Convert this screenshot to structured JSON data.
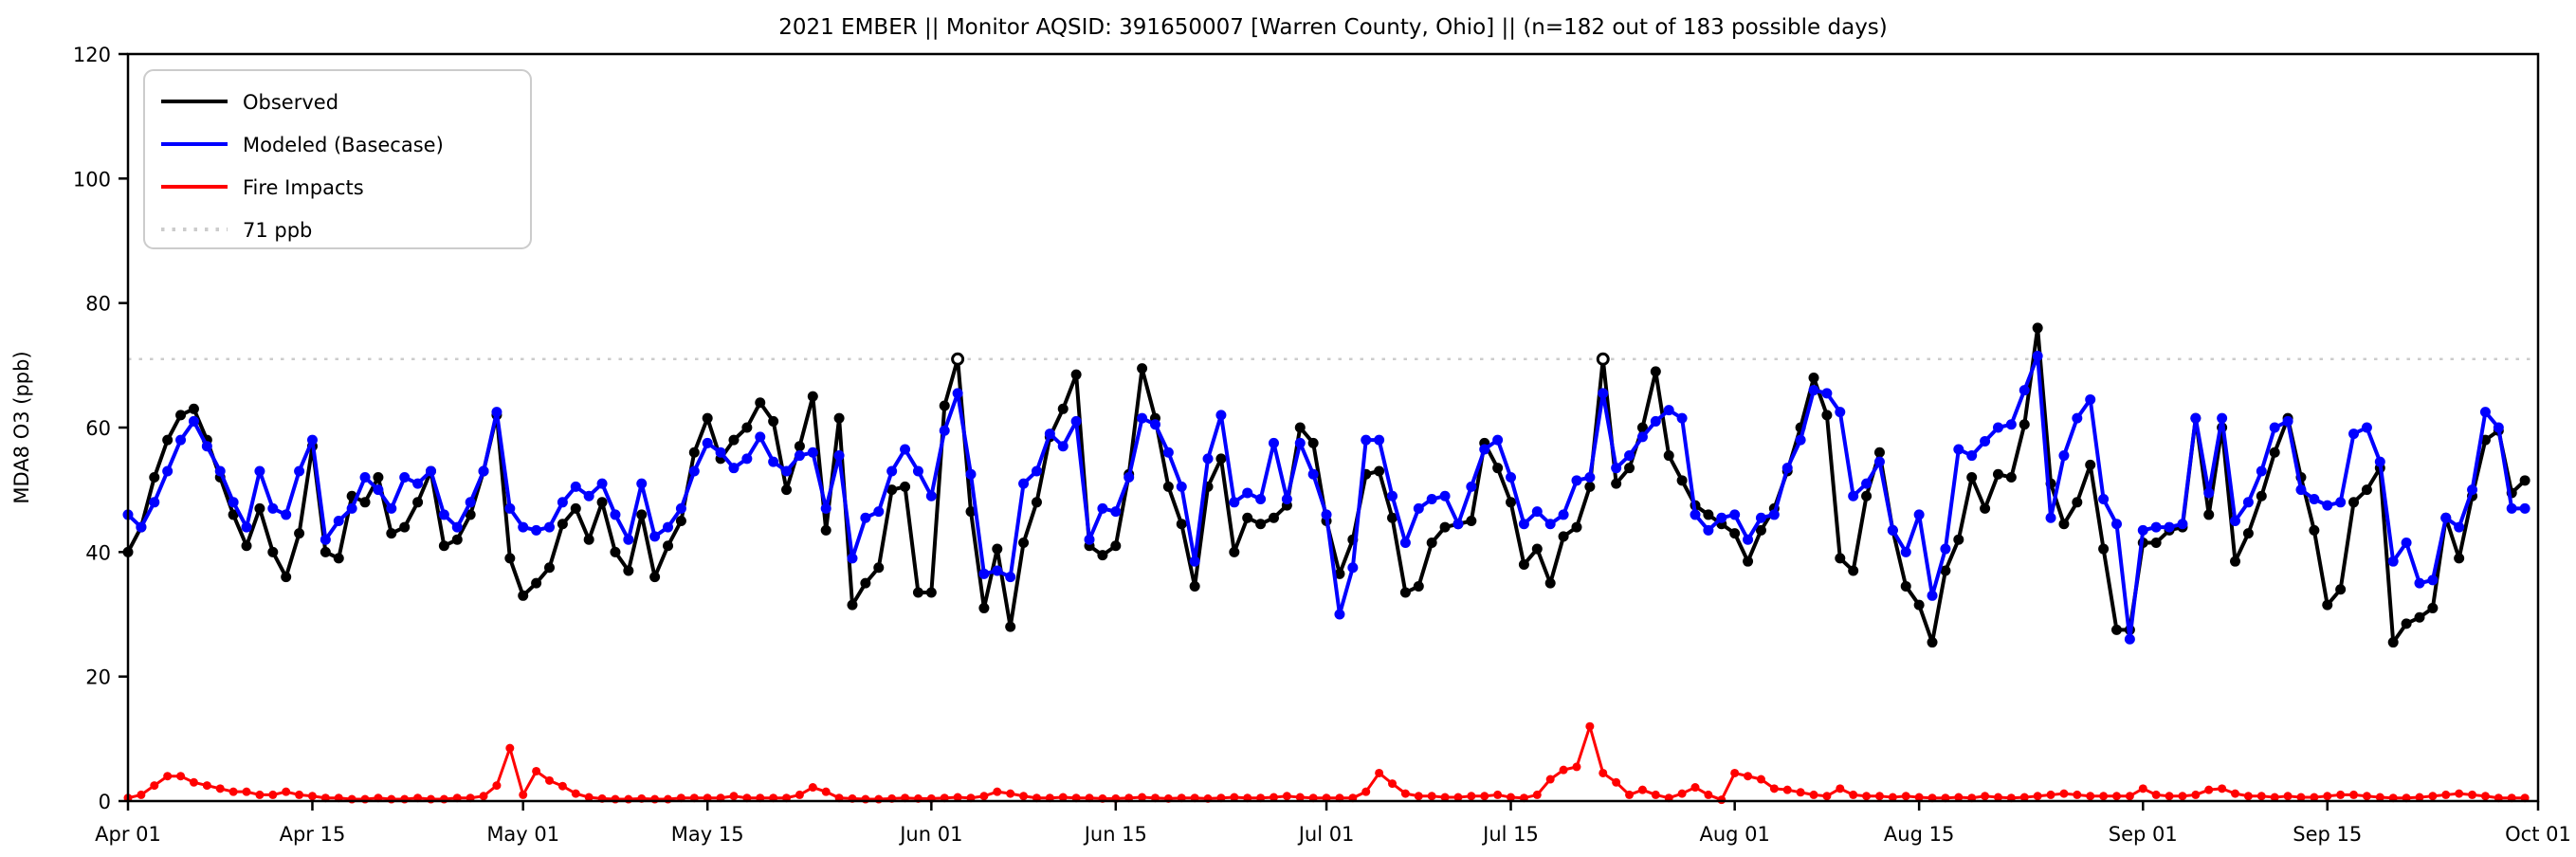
{
  "title": "2021 EMBER || Monitor AQSID: 391650007 [Warren County, Ohio] || (n=182 out of 183 possible days)",
  "axes": {
    "ylabel": "MDA8 O3 (ppb)",
    "ylim": [
      0,
      120
    ],
    "yticks": [
      0,
      20,
      40,
      60,
      80,
      100,
      120
    ],
    "xticks": [
      {
        "day": 0,
        "label": "Apr 01"
      },
      {
        "day": 14,
        "label": "Apr 15"
      },
      {
        "day": 30,
        "label": "May 01"
      },
      {
        "day": 44,
        "label": "May 15"
      },
      {
        "day": 61,
        "label": "Jun 01"
      },
      {
        "day": 75,
        "label": "Jun 15"
      },
      {
        "day": 91,
        "label": "Jul 01"
      },
      {
        "day": 105,
        "label": "Jul 15"
      },
      {
        "day": 122,
        "label": "Aug 01"
      },
      {
        "day": 136,
        "label": "Aug 15"
      },
      {
        "day": 153,
        "label": "Sep 01"
      },
      {
        "day": 167,
        "label": "Sep 15"
      },
      {
        "day": 183,
        "label": "Oct 01"
      }
    ],
    "threshold": {
      "value": 71,
      "label": "71 ppb",
      "color": "#cccccc",
      "style": "dotted"
    }
  },
  "legend": {
    "position": "upper-left",
    "entries": [
      {
        "label": "Observed",
        "color": "#000000",
        "style": "solid"
      },
      {
        "label": "Modeled (Basecase)",
        "color": "#0000ff",
        "style": "solid"
      },
      {
        "label": "Fire Impacts",
        "color": "#ff0000",
        "style": "solid"
      },
      {
        "label": "71 ppb",
        "color": "#cccccc",
        "style": "dotted"
      }
    ]
  },
  "chart_data": {
    "type": "line",
    "x_start_label": "Apr 01",
    "x_end_label": "Oct 01",
    "n_days": 183,
    "grid": false,
    "open_marker_days": [
      63,
      112
    ],
    "series": [
      {
        "name": "Observed",
        "color": "#000000",
        "marker": "circle",
        "values": [
          40,
          44,
          52,
          58,
          62,
          63,
          58,
          52,
          46,
          41,
          47,
          40,
          36,
          43,
          57,
          40,
          39,
          49,
          48,
          52,
          43,
          44,
          48,
          53,
          41,
          42,
          46,
          53,
          62,
          39,
          33,
          35,
          37.5,
          44.5,
          47,
          42,
          48,
          40,
          37,
          46,
          36,
          41,
          45,
          56,
          61.5,
          55,
          58,
          60,
          64,
          61,
          50,
          57,
          65,
          43.5,
          61.5,
          31.5,
          35,
          37.5,
          50,
          50.5,
          33.5,
          33.5,
          63.5,
          71,
          46.5,
          31,
          40.5,
          28,
          41.5,
          48,
          58.5,
          63,
          68.5,
          41,
          39.5,
          41,
          52.5,
          69.5,
          61.5,
          50.5,
          44.5,
          34.5,
          50.5,
          55,
          40,
          45.5,
          44.5,
          45.5,
          47.5,
          60,
          57.5,
          45,
          36.5,
          42,
          52.5,
          53,
          45.5,
          33.5,
          34.5,
          41.5,
          44,
          44.5,
          45,
          57.5,
          53.5,
          48,
          38,
          40.5,
          35,
          42.5,
          44,
          50.5,
          71,
          51,
          53.5,
          60,
          69,
          55.5,
          51.5,
          47.5,
          46,
          44.5,
          43,
          38.5,
          43.5,
          47,
          53,
          60,
          68,
          62,
          39,
          37,
          49,
          56,
          43.5,
          34.5,
          31.5,
          25.5,
          37,
          42,
          52,
          47,
          52.5,
          52,
          60.5,
          76,
          51,
          44.5,
          48,
          54,
          40.5,
          27.5,
          27.5,
          41.5,
          41.5,
          43.5,
          44,
          61.5,
          46,
          60,
          38.5,
          43,
          49,
          56,
          61.5,
          52,
          43.5,
          31.5,
          34,
          48,
          50,
          53.5,
          25.5,
          28.5,
          29.5,
          31,
          45.5,
          39,
          49,
          58,
          59.5,
          49.5,
          51.5
        ]
      },
      {
        "name": "Modeled (Basecase)",
        "color": "#0000ff",
        "marker": "circle",
        "values": [
          46,
          44,
          48,
          53,
          58,
          61,
          57,
          53,
          48,
          44,
          53,
          47,
          46,
          53,
          58,
          42,
          45,
          47,
          52,
          50,
          47,
          52,
          51,
          53,
          46,
          44,
          48,
          53,
          62.5,
          47,
          44,
          43.5,
          44,
          48,
          50.5,
          49,
          51,
          46,
          42,
          51,
          42.5,
          44,
          47,
          53,
          57.5,
          56,
          53.5,
          55,
          58.5,
          54.5,
          53,
          55.5,
          56,
          47,
          55.5,
          39,
          45.5,
          46.5,
          53,
          56.5,
          53,
          49,
          59.5,
          65.5,
          52.5,
          36.5,
          37,
          36,
          51,
          53,
          59,
          57,
          61,
          42,
          47,
          46.5,
          52,
          61.5,
          60.5,
          56,
          50.5,
          38.5,
          55,
          62,
          48,
          49.5,
          48.5,
          57.5,
          48.5,
          57.5,
          52.5,
          46,
          30,
          37.5,
          58,
          58,
          49,
          41.5,
          47,
          48.5,
          49,
          44.5,
          50.5,
          56.5,
          58,
          52,
          44.5,
          46.5,
          44.5,
          46,
          51.5,
          52,
          65.5,
          53.5,
          55.5,
          58.5,
          61,
          62.8,
          61.5,
          46,
          43.5,
          45.5,
          46,
          42,
          45.5,
          46,
          53.5,
          58,
          66,
          65.5,
          62.5,
          49,
          51,
          54.5,
          43.5,
          40,
          46,
          33,
          40.5,
          56.5,
          55.5,
          57.8,
          60,
          60.5,
          66,
          71.5,
          45.5,
          55.5,
          61.5,
          64.5,
          48.5,
          44.5,
          26,
          43.5,
          44,
          44,
          44.5,
          61.5,
          49.5,
          61.5,
          45,
          48,
          53,
          60,
          61,
          50,
          48.5,
          47.5,
          48,
          59,
          60,
          54.5,
          38.5,
          41.5,
          35,
          35.5,
          45.5,
          44,
          50,
          62.5,
          60,
          47,
          47
        ]
      },
      {
        "name": "Fire Impacts",
        "color": "#ff0000",
        "marker": "circle",
        "values": [
          0.5,
          1,
          2.5,
          4,
          4,
          3,
          2.5,
          2,
          1.5,
          1.5,
          1,
          1,
          1.5,
          1,
          0.8,
          0.5,
          0.5,
          0.3,
          0.3,
          0.5,
          0.3,
          0.3,
          0.5,
          0.3,
          0.3,
          0.5,
          0.5,
          0.8,
          2.5,
          8.5,
          1,
          4.8,
          3.3,
          2.4,
          1.2,
          0.6,
          0.4,
          0.3,
          0.3,
          0.4,
          0.3,
          0.3,
          0.5,
          0.5,
          0.5,
          0.5,
          0.8,
          0.5,
          0.5,
          0.5,
          0.5,
          1,
          2.2,
          1.5,
          0.5,
          0.4,
          0.3,
          0.3,
          0.4,
          0.5,
          0.4,
          0.4,
          0.5,
          0.6,
          0.5,
          0.8,
          1.5,
          1.2,
          0.8,
          0.5,
          0.5,
          0.6,
          0.5,
          0.5,
          0.4,
          0.4,
          0.5,
          0.6,
          0.5,
          0.4,
          0.5,
          0.5,
          0.4,
          0.5,
          0.6,
          0.5,
          0.5,
          0.6,
          0.8,
          0.6,
          0.5,
          0.5,
          0.5,
          0.5,
          1.5,
          4.5,
          2.8,
          1.2,
          0.8,
          0.8,
          0.6,
          0.6,
          0.8,
          0.8,
          1,
          0.6,
          0.5,
          1,
          3.5,
          5,
          5.5,
          12,
          4.5,
          3,
          1,
          1.8,
          1,
          0.5,
          1.2,
          2.2,
          1,
          0.2,
          4.5,
          4,
          3.5,
          2,
          1.8,
          1.4,
          1,
          0.8,
          2,
          1,
          0.8,
          0.8,
          0.6,
          0.8,
          0.6,
          0.5,
          0.5,
          0.6,
          0.5,
          0.8,
          0.6,
          0.5,
          0.6,
          0.8,
          1,
          1.2,
          1,
          0.8,
          0.8,
          0.8,
          0.8,
          2,
          1,
          0.8,
          0.8,
          1,
          1.8,
          2,
          1.2,
          0.8,
          0.8,
          0.6,
          0.8,
          0.6,
          0.6,
          0.8,
          1,
          1,
          0.8,
          0.6,
          0.5,
          0.5,
          0.6,
          0.8,
          1,
          1.2,
          1,
          0.8,
          0.5,
          0.5,
          0.5
        ]
      }
    ]
  }
}
